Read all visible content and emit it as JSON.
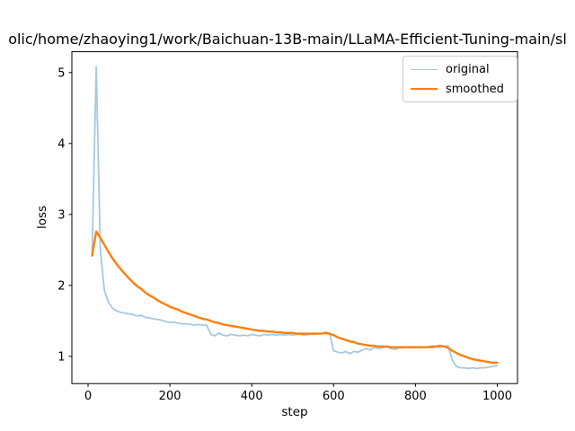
{
  "chart_data": {
    "type": "line",
    "title": "olic/home/zhaoying1/work/Baichuan-13B-main/LLaMA-Efficient-Tuning-main/sl",
    "xlabel": "step",
    "ylabel": "loss",
    "legend_position": "upper right",
    "grid": false,
    "xticks": [
      0,
      200,
      400,
      600,
      800,
      1000
    ],
    "yticks": [
      1,
      2,
      3,
      4,
      5
    ],
    "xlim": [
      -39.5,
      1049.5
    ],
    "ylim": [
      0.617,
      5.293
    ],
    "x": [
      10,
      20,
      30,
      40,
      50,
      60,
      70,
      80,
      90,
      100,
      110,
      120,
      130,
      140,
      150,
      160,
      170,
      180,
      190,
      200,
      210,
      220,
      230,
      240,
      250,
      260,
      270,
      280,
      290,
      300,
      310,
      320,
      330,
      340,
      350,
      360,
      370,
      380,
      390,
      400,
      410,
      420,
      430,
      440,
      450,
      460,
      470,
      480,
      490,
      500,
      510,
      520,
      530,
      540,
      550,
      560,
      570,
      580,
      590,
      600,
      610,
      620,
      630,
      640,
      650,
      660,
      670,
      680,
      690,
      700,
      710,
      720,
      730,
      740,
      750,
      760,
      770,
      780,
      790,
      800,
      810,
      820,
      830,
      840,
      850,
      860,
      870,
      880,
      890,
      900,
      910,
      920,
      930,
      940,
      950,
      960,
      970,
      980,
      990,
      1000
    ],
    "series": [
      {
        "name": "original",
        "color": "#a5c9e1",
        "width": 1.8,
        "values": [
          2.42,
          5.08,
          2.5,
          1.93,
          1.76,
          1.68,
          1.64,
          1.62,
          1.61,
          1.6,
          1.59,
          1.57,
          1.58,
          1.55,
          1.54,
          1.53,
          1.52,
          1.51,
          1.49,
          1.48,
          1.48,
          1.47,
          1.46,
          1.46,
          1.45,
          1.44,
          1.45,
          1.44,
          1.44,
          1.31,
          1.29,
          1.33,
          1.3,
          1.29,
          1.31,
          1.3,
          1.29,
          1.3,
          1.29,
          1.31,
          1.3,
          1.29,
          1.31,
          1.3,
          1.31,
          1.3,
          1.31,
          1.3,
          1.31,
          1.3,
          1.31,
          1.31,
          1.3,
          1.31,
          1.31,
          1.32,
          1.32,
          1.34,
          1.33,
          1.08,
          1.06,
          1.05,
          1.07,
          1.04,
          1.07,
          1.06,
          1.09,
          1.11,
          1.09,
          1.13,
          1.11,
          1.12,
          1.14,
          1.11,
          1.1,
          1.12,
          1.12,
          1.13,
          1.12,
          1.13,
          1.12,
          1.13,
          1.13,
          1.12,
          1.13,
          1.13,
          1.14,
          1.15,
          0.95,
          0.86,
          0.84,
          0.84,
          0.83,
          0.84,
          0.83,
          0.84,
          0.84,
          0.85,
          0.86,
          0.87
        ]
      },
      {
        "name": "smoothed",
        "color": "#ff7f0e",
        "width": 2.4,
        "values": [
          2.42,
          2.76,
          2.67,
          2.57,
          2.47,
          2.38,
          2.3,
          2.23,
          2.16,
          2.1,
          2.04,
          1.99,
          1.95,
          1.9,
          1.86,
          1.83,
          1.79,
          1.76,
          1.73,
          1.7,
          1.68,
          1.66,
          1.63,
          1.61,
          1.59,
          1.57,
          1.55,
          1.53,
          1.52,
          1.5,
          1.48,
          1.47,
          1.45,
          1.44,
          1.43,
          1.42,
          1.41,
          1.4,
          1.39,
          1.38,
          1.37,
          1.36,
          1.36,
          1.35,
          1.35,
          1.34,
          1.34,
          1.33,
          1.33,
          1.33,
          1.32,
          1.32,
          1.32,
          1.32,
          1.32,
          1.32,
          1.32,
          1.33,
          1.32,
          1.3,
          1.27,
          1.25,
          1.23,
          1.21,
          1.2,
          1.18,
          1.17,
          1.16,
          1.15,
          1.15,
          1.14,
          1.14,
          1.14,
          1.13,
          1.13,
          1.13,
          1.13,
          1.13,
          1.13,
          1.13,
          1.13,
          1.13,
          1.13,
          1.14,
          1.14,
          1.15,
          1.14,
          1.12,
          1.08,
          1.05,
          1.02,
          1.0,
          0.98,
          0.96,
          0.95,
          0.94,
          0.93,
          0.92,
          0.91,
          0.91
        ]
      }
    ]
  }
}
